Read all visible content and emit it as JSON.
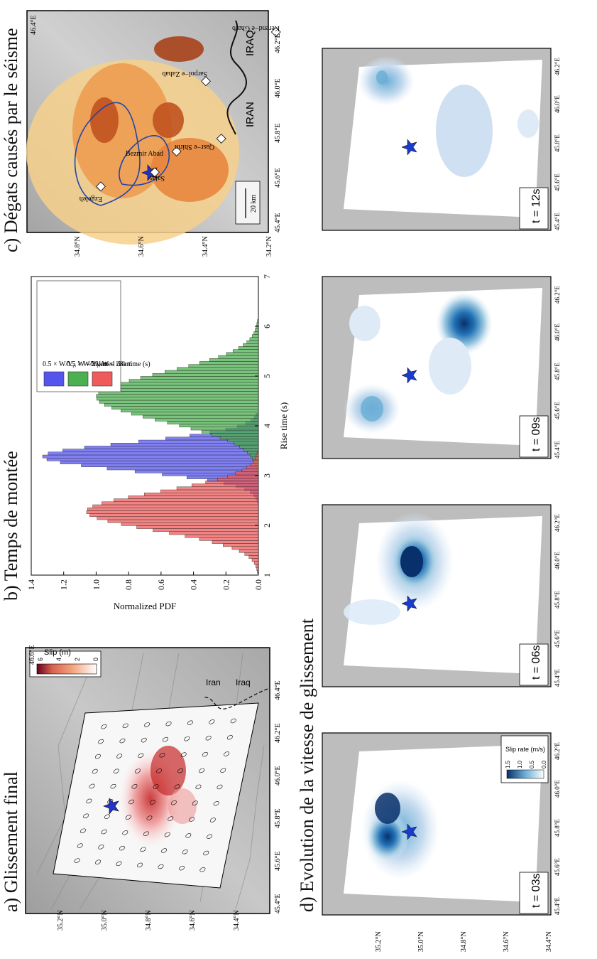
{
  "panels": {
    "a": {
      "title": "a) Glissement final",
      "colorbar_label": "Slip (m)",
      "colorbar_ticks": [
        "0",
        "2",
        "4",
        "6"
      ],
      "country_labels": [
        "Iran",
        "Iraq"
      ]
    },
    "b": {
      "title": "b) Temps de montée"
    },
    "c": {
      "title": "c) Dégats causés par le séisme",
      "scale_label": "20 km",
      "places": [
        "Salas",
        "Bezmir Abad",
        "Ezgeleh",
        "Sarpol−e Zahab",
        "Qasr−e Shirin",
        "Kerend−e Gharb"
      ],
      "country_labels": [
        "IRAN",
        "IRAQ"
      ]
    },
    "d": {
      "title": "d) Evolution de la vitesse de glissement",
      "time_labels": [
        "t = 03s",
        "t = 06s",
        "t = 09s",
        "t = 12s"
      ],
      "colorbar_label": "Slip rate (m/s)",
      "colorbar_ticks": [
        "0.0",
        "0.5",
        "1.0",
        "1.5"
      ]
    }
  },
  "axes": {
    "lon_a": [
      "45.4°E",
      "45.6°E",
      "45.8°E",
      "46.0°E",
      "46.2°E",
      "46.4°E",
      "46.6°E"
    ],
    "lat_a": [
      "35.2°N",
      "35.0°N",
      "34.8°N",
      "34.6°N",
      "34.4°N"
    ],
    "lon_c": [
      "45.4°E",
      "45.6°E",
      "45.8°E",
      "46.0°E",
      "46.2°E",
      "46.4°E"
    ],
    "lat_c": [
      "34.8°N",
      "34.6°N",
      "34.4°N",
      "34.2°N"
    ],
    "lon_d": [
      "45.4°E",
      "45.6°E",
      "45.8°E",
      "46.0°E",
      "46.2°E"
    ],
    "lat_d": [
      "35.2°N",
      "35.0°N",
      "34.8°N",
      "34.6°N",
      "34.4°N"
    ]
  },
  "colors": {
    "red": "#ef5b5b",
    "blue": "#5555ee",
    "green": "#4caf50",
    "slip_dark": "#c62828",
    "rate_dark": "#0d47a1"
  },
  "chart_data": {
    "type": "bar",
    "xlabel": "Rise time (s)",
    "ylabel": "Normalized PDF",
    "xlim": [
      1,
      7
    ],
    "ylim": [
      0,
      1.4
    ],
    "x_ticks": [
      "1",
      "2",
      "3",
      "4",
      "5",
      "6",
      "7"
    ],
    "y_ticks": [
      "0.0",
      "0.2",
      "0.4",
      "0.6",
      "0.8",
      "1.0",
      "1.2",
      "1.4"
    ],
    "legend_position": "top-right",
    "series": [
      {
        "name": "0.5 × W/Vr, W = 21km",
        "legend_prefix": "0.5 ×",
        "legend_suffix": ", W = 21km",
        "color": "#5555ee",
        "peak_x": 3.35,
        "peak_y": 1.33,
        "sigma": 0.28
      },
      {
        "name": "0.5 × W/Vr, W = 28km",
        "legend_prefix": "0.5 ×",
        "legend_suffix": ", W = 28km",
        "color": "#4caf50",
        "peak_x": 4.55,
        "peak_y": 1.0,
        "sigma": 0.48
      },
      {
        "name": "Inverted rise time (s)",
        "legend_prefix": "",
        "legend_suffix": "Inverted rise time (s)",
        "color": "#ef5b5b",
        "peak_x": 2.25,
        "peak_y": 1.06,
        "sigma": 0.38
      }
    ]
  }
}
